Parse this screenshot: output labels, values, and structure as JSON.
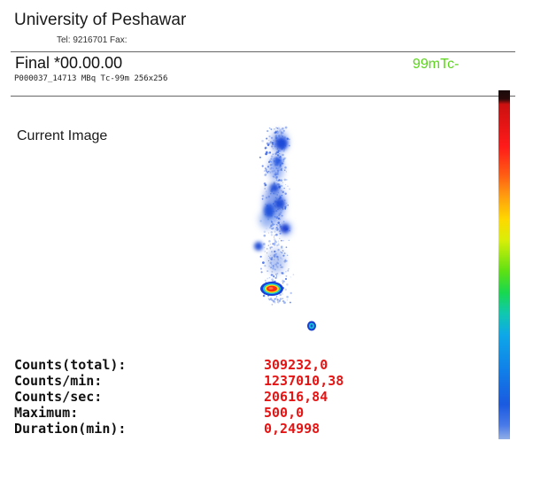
{
  "header": {
    "institution": "University of Peshawar",
    "contact": "Tel: 9216701  Fax:",
    "study_title": "Final *00.00.00",
    "study_info": "P000037_14713 MBq Tc-99m 256x256",
    "isotope": "99mTc-"
  },
  "view": {
    "label": "Current Image"
  },
  "colorbar": {
    "colors": [
      "#1a0a0a",
      "#ff1a1a",
      "#ff9a10",
      "#ffd800",
      "#5ce014",
      "#10c8b0",
      "#0ea8e8",
      "#1a5ae0",
      "#90aee6"
    ]
  },
  "stats": [
    {
      "label": "Counts(total):",
      "value": "309232,0"
    },
    {
      "label": "Counts/min:",
      "value": "1237010,38"
    },
    {
      "label": "Counts/sec:",
      "value": "20616,84"
    },
    {
      "label": "Maximum:",
      "value": "500,0"
    },
    {
      "label": "Duration(min):",
      "value": "0,24998"
    }
  ]
}
